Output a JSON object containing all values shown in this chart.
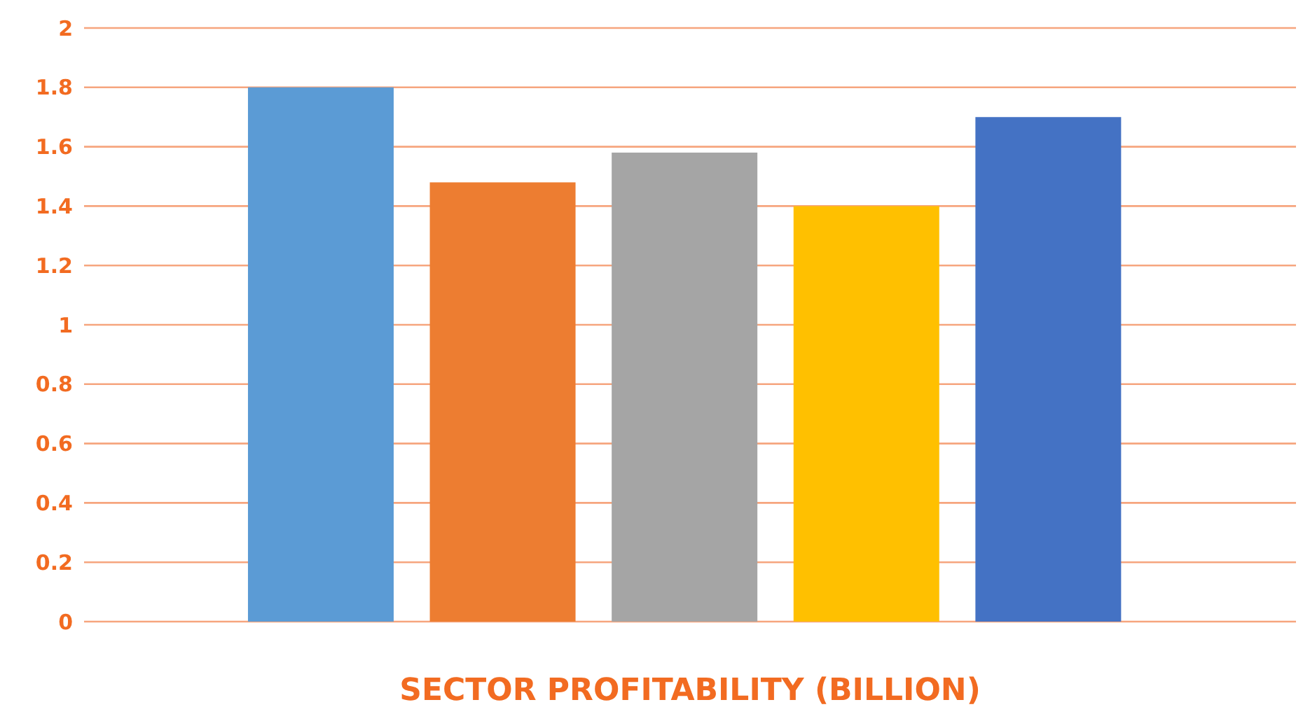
{
  "chart_data": {
    "type": "bar",
    "xlabel": "SECTOR PROFITABILITY (BILLION)",
    "categories": [
      null,
      null,
      null,
      null,
      null
    ],
    "values": [
      1.8,
      1.48,
      1.58,
      1.4,
      1.7
    ],
    "colors": [
      "#5b9bd5",
      "#ed7d31",
      "#a5a5a5",
      "#ffc000",
      "#4472c4"
    ],
    "ylim": [
      0,
      2
    ],
    "yticks": [
      0,
      0.2,
      0.4,
      0.6,
      0.8,
      1,
      1.2,
      1.4,
      1.6,
      1.8,
      2
    ],
    "grid": "y",
    "legend": false
  }
}
